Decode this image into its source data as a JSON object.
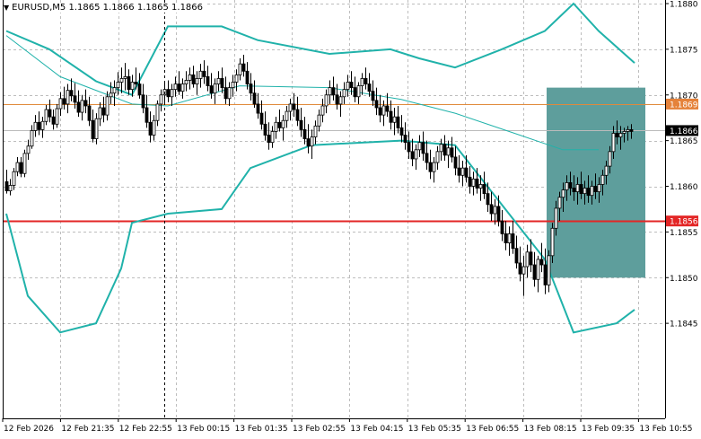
{
  "header": {
    "symbol": "EURUSD,M5",
    "prices": [
      "1.1865",
      "1.1866",
      "1.1865",
      "1.1866"
    ]
  },
  "chart_data": {
    "type": "candlestick",
    "ylim": [
      1.184,
      1.188
    ],
    "y_ticks": [
      "1.1880",
      "1.1875",
      "1.1870",
      "1.1865",
      "1.1860",
      "1.1855",
      "1.1850",
      "1.1845"
    ],
    "x_ticks": [
      "12 Feb 2026",
      "12 Feb 21:35",
      "12 Feb 22:55",
      "13 Feb 00:15",
      "13 Feb 01:35",
      "13 Feb 02:55",
      "13 Feb 04:15",
      "13 Feb 05:35",
      "13 Feb 06:55",
      "13 Feb 08:15",
      "13 Feb 09:35",
      "13 Feb 10:55"
    ],
    "grid": true,
    "candle_count": 175,
    "candles": [
      [
        1.18605,
        1.18618,
        1.18592,
        1.18595
      ],
      [
        1.18595,
        1.18608,
        1.1859,
        1.18601
      ],
      [
        1.18601,
        1.1862,
        1.18596,
        1.18616
      ],
      [
        1.18616,
        1.18632,
        1.18611,
        1.18626
      ],
      [
        1.18626,
        1.18632,
        1.1861,
        1.18614
      ],
      [
        1.18614,
        1.1864,
        1.1861,
        1.18636
      ],
      [
        1.18636,
        1.18651,
        1.18629,
        1.18644
      ],
      [
        1.18644,
        1.18667,
        1.18641,
        1.18661
      ],
      [
        1.18661,
        1.18678,
        1.18654,
        1.1867
      ],
      [
        1.1867,
        1.18682,
        1.18656,
        1.18662
      ],
      [
        1.18662,
        1.18676,
        1.18653,
        1.18671
      ],
      [
        1.18671,
        1.18689,
        1.18667,
        1.18684
      ],
      [
        1.18684,
        1.18695,
        1.1867,
        1.18676
      ],
      [
        1.18676,
        1.18684,
        1.18662,
        1.18668
      ],
      [
        1.18668,
        1.1869,
        1.18664,
        1.18685
      ],
      [
        1.18685,
        1.18703,
        1.18677,
        1.18696
      ],
      [
        1.18696,
        1.18709,
        1.18684,
        1.1869
      ],
      [
        1.1869,
        1.18712,
        1.1868,
        1.18705
      ],
      [
        1.18705,
        1.18718,
        1.18693,
        1.18699
      ],
      [
        1.18699,
        1.18713,
        1.18685,
        1.18692
      ],
      [
        1.18692,
        1.18705,
        1.18676,
        1.18681
      ],
      [
        1.18681,
        1.187,
        1.18672,
        1.18694
      ],
      [
        1.18694,
        1.18706,
        1.1868,
        1.18688
      ],
      [
        1.18688,
        1.18698,
        1.18666,
        1.18672
      ],
      [
        1.18672,
        1.18684,
        1.18648,
        1.18652
      ],
      [
        1.18652,
        1.1868,
        1.18646,
        1.18674
      ],
      [
        1.18674,
        1.18692,
        1.18666,
        1.18686
      ],
      [
        1.18686,
        1.18698,
        1.1867,
        1.18678
      ],
      [
        1.18678,
        1.18704,
        1.18672,
        1.18698
      ],
      [
        1.18698,
        1.18714,
        1.1869,
        1.18702
      ],
      [
        1.18702,
        1.18716,
        1.18688,
        1.18708
      ],
      [
        1.18708,
        1.18725,
        1.187,
        1.18714
      ],
      [
        1.18714,
        1.1873,
        1.18702,
        1.18718
      ],
      [
        1.18718,
        1.18735,
        1.18705,
        1.1872
      ],
      [
        1.1872,
        1.18728,
        1.187,
        1.18706
      ],
      [
        1.18706,
        1.18722,
        1.18698,
        1.18714
      ],
      [
        1.18714,
        1.1873,
        1.18706,
        1.18712
      ],
      [
        1.18712,
        1.18724,
        1.18696,
        1.187
      ],
      [
        1.187,
        1.18712,
        1.1868,
        1.18686
      ],
      [
        1.18686,
        1.187,
        1.18664,
        1.1867
      ],
      [
        1.1867,
        1.18682,
        1.18648,
        1.18656
      ],
      [
        1.18656,
        1.18678,
        1.1865,
        1.18672
      ],
      [
        1.18672,
        1.18694,
        1.18666,
        1.1869
      ],
      [
        1.1869,
        1.18706,
        1.18682,
        1.187
      ],
      [
        1.187,
        1.18714,
        1.1869,
        1.18706
      ],
      [
        1.18706,
        1.18716,
        1.18692,
        1.18698
      ],
      [
        1.18698,
        1.18712,
        1.18688,
        1.18706
      ],
      [
        1.18706,
        1.1872,
        1.18698,
        1.18712
      ],
      [
        1.18712,
        1.18726,
        1.187,
        1.18704
      ],
      [
        1.18704,
        1.18718,
        1.18696,
        1.18712
      ],
      [
        1.18712,
        1.18726,
        1.18704,
        1.18716
      ],
      [
        1.18716,
        1.1873,
        1.18706,
        1.18722
      ],
      [
        1.18722,
        1.18732,
        1.18708,
        1.18712
      ],
      [
        1.18712,
        1.18726,
        1.187,
        1.18718
      ],
      [
        1.18718,
        1.18734,
        1.18708,
        1.18726
      ],
      [
        1.18726,
        1.18738,
        1.18712,
        1.1872
      ],
      [
        1.1872,
        1.18732,
        1.18704,
        1.1871
      ],
      [
        1.1871,
        1.18724,
        1.18696,
        1.18702
      ],
      [
        1.18702,
        1.18718,
        1.1869,
        1.18712
      ],
      [
        1.18712,
        1.18726,
        1.18704,
        1.18718
      ],
      [
        1.18718,
        1.1873,
        1.18702,
        1.18708
      ],
      [
        1.18708,
        1.1872,
        1.1869,
        1.18696
      ],
      [
        1.18696,
        1.18714,
        1.18688,
        1.18708
      ],
      [
        1.18708,
        1.18722,
        1.18698,
        1.18714
      ],
      [
        1.18714,
        1.18728,
        1.18704,
        1.18722
      ],
      [
        1.18722,
        1.1874,
        1.18716,
        1.18734
      ],
      [
        1.18734,
        1.18744,
        1.1872,
        1.18726
      ],
      [
        1.18726,
        1.18736,
        1.18706,
        1.18712
      ],
      [
        1.18712,
        1.18724,
        1.18694,
        1.18702
      ],
      [
        1.18702,
        1.18716,
        1.18686,
        1.1869
      ],
      [
        1.1869,
        1.18702,
        1.18674,
        1.1868
      ],
      [
        1.1868,
        1.18694,
        1.18662,
        1.18668
      ],
      [
        1.18668,
        1.18682,
        1.1865,
        1.18656
      ],
      [
        1.18656,
        1.1867,
        1.1864,
        1.18648
      ],
      [
        1.18648,
        1.18666,
        1.18642,
        1.1866
      ],
      [
        1.1866,
        1.18676,
        1.18652,
        1.1867
      ],
      [
        1.1867,
        1.18684,
        1.1866,
        1.18664
      ],
      [
        1.18664,
        1.18678,
        1.1865,
        1.18672
      ],
      [
        1.18672,
        1.18688,
        1.18664,
        1.18682
      ],
      [
        1.18682,
        1.18696,
        1.18672,
        1.1869
      ],
      [
        1.1869,
        1.18702,
        1.18676,
        1.18684
      ],
      [
        1.18684,
        1.18698,
        1.18666,
        1.18672
      ],
      [
        1.18672,
        1.18686,
        1.18654,
        1.18662
      ],
      [
        1.18662,
        1.18676,
        1.18646,
        1.18652
      ],
      [
        1.18652,
        1.18668,
        1.18636,
        1.18644
      ],
      [
        1.18644,
        1.18662,
        1.1863,
        1.18654
      ],
      [
        1.18654,
        1.18672,
        1.18646,
        1.18666
      ],
      [
        1.18666,
        1.18684,
        1.1866,
        1.18678
      ],
      [
        1.18678,
        1.18696,
        1.1867,
        1.18688
      ],
      [
        1.18688,
        1.18706,
        1.1868,
        1.187
      ],
      [
        1.187,
        1.18716,
        1.1869,
        1.18708
      ],
      [
        1.18708,
        1.1872,
        1.18694,
        1.187
      ],
      [
        1.187,
        1.18712,
        1.18684,
        1.1869
      ],
      [
        1.1869,
        1.18704,
        1.18676,
        1.18698
      ],
      [
        1.18698,
        1.18714,
        1.1869,
        1.18706
      ],
      [
        1.18706,
        1.18722,
        1.18698,
        1.18714
      ],
      [
        1.18714,
        1.18726,
        1.187,
        1.18708
      ],
      [
        1.18708,
        1.1872,
        1.18692,
        1.18698
      ],
      [
        1.18698,
        1.18714,
        1.1869,
        1.1871
      ],
      [
        1.1871,
        1.18724,
        1.187,
        1.18718
      ],
      [
        1.18718,
        1.1873,
        1.18706,
        1.18712
      ],
      [
        1.18712,
        1.18724,
        1.18698,
        1.18704
      ],
      [
        1.18704,
        1.18716,
        1.18688,
        1.18694
      ],
      [
        1.18694,
        1.18708,
        1.18678,
        1.18686
      ],
      [
        1.18686,
        1.187,
        1.1867,
        1.18678
      ],
      [
        1.18678,
        1.18694,
        1.18666,
        1.18688
      ],
      [
        1.18688,
        1.18702,
        1.18676,
        1.18682
      ],
      [
        1.18682,
        1.18694,
        1.18662,
        1.1867
      ],
      [
        1.1867,
        1.18686,
        1.18656,
        1.18676
      ],
      [
        1.18676,
        1.18688,
        1.18658,
        1.18664
      ],
      [
        1.18664,
        1.18678,
        1.18648,
        1.18656
      ],
      [
        1.18656,
        1.1867,
        1.1864,
        1.18648
      ],
      [
        1.18648,
        1.1866,
        1.1863,
        1.18638
      ],
      [
        1.18638,
        1.18652,
        1.18622,
        1.1863
      ],
      [
        1.1863,
        1.18646,
        1.18618,
        1.1864
      ],
      [
        1.1864,
        1.18656,
        1.18632,
        1.18648
      ],
      [
        1.18648,
        1.1866,
        1.18628,
        1.18636
      ],
      [
        1.18636,
        1.1865,
        1.18618,
        1.18626
      ],
      [
        1.18626,
        1.1864,
        1.18608,
        1.18616
      ],
      [
        1.18616,
        1.18632,
        1.18604,
        1.18626
      ],
      [
        1.18626,
        1.18644,
        1.18618,
        1.18638
      ],
      [
        1.18638,
        1.18652,
        1.18628,
        1.18646
      ],
      [
        1.18646,
        1.18656,
        1.18628,
        1.18634
      ],
      [
        1.18634,
        1.1865,
        1.1862,
        1.18642
      ],
      [
        1.18642,
        1.18654,
        1.18626,
        1.18632
      ],
      [
        1.18632,
        1.18644,
        1.18612,
        1.1862
      ],
      [
        1.1862,
        1.18634,
        1.18604,
        1.18612
      ],
      [
        1.18612,
        1.18628,
        1.186,
        1.1862
      ],
      [
        1.1862,
        1.18634,
        1.18604,
        1.1861
      ],
      [
        1.1861,
        1.18622,
        1.18592,
        1.186
      ],
      [
        1.186,
        1.18616,
        1.1859,
        1.18608
      ],
      [
        1.18608,
        1.1862,
        1.18592,
        1.18598
      ],
      [
        1.18598,
        1.18612,
        1.18584,
        1.18602
      ],
      [
        1.18602,
        1.18616,
        1.18586,
        1.18592
      ],
      [
        1.18592,
        1.18604,
        1.18572,
        1.1858
      ],
      [
        1.1858,
        1.18594,
        1.18562,
        1.1857
      ],
      [
        1.1857,
        1.18586,
        1.18558,
        1.18578
      ],
      [
        1.18578,
        1.1859,
        1.18556,
        1.18562
      ],
      [
        1.18562,
        1.18574,
        1.1854,
        1.18548
      ],
      [
        1.18548,
        1.18562,
        1.1853,
        1.18538
      ],
      [
        1.18538,
        1.18556,
        1.18524,
        1.18548
      ],
      [
        1.18548,
        1.18562,
        1.18526,
        1.18532
      ],
      [
        1.18532,
        1.18546,
        1.1851,
        1.18516
      ],
      [
        1.18516,
        1.18534,
        1.18496,
        1.18504
      ],
      [
        1.18504,
        1.18524,
        1.1848,
        1.18512
      ],
      [
        1.18512,
        1.18536,
        1.185,
        1.18528
      ],
      [
        1.18528,
        1.18542,
        1.18506,
        1.18514
      ],
      [
        1.18514,
        1.18528,
        1.1849,
        1.18498
      ],
      [
        1.18498,
        1.18524,
        1.18484,
        1.1852
      ],
      [
        1.1852,
        1.18538,
        1.18506,
        1.18514
      ],
      [
        1.18514,
        1.18532,
        1.18482,
        1.18492
      ],
      [
        1.18492,
        1.1853,
        1.18484,
        1.18524
      ],
      [
        1.18524,
        1.1856,
        1.18516,
        1.18554
      ],
      [
        1.18554,
        1.18584,
        1.18546,
        1.18576
      ],
      [
        1.18576,
        1.18594,
        1.18562,
        1.18588
      ],
      [
        1.18588,
        1.18604,
        1.18572,
        1.18596
      ],
      [
        1.18596,
        1.18612,
        1.18584,
        1.18604
      ],
      [
        1.18604,
        1.18616,
        1.1859,
        1.18598
      ],
      [
        1.18598,
        1.18612,
        1.18584,
        1.18594
      ],
      [
        1.18594,
        1.1861,
        1.1858,
        1.18602
      ],
      [
        1.18602,
        1.18616,
        1.18586,
        1.18592
      ],
      [
        1.18592,
        1.18606,
        1.1858,
        1.18598
      ],
      [
        1.18598,
        1.18612,
        1.18582,
        1.1859
      ],
      [
        1.1859,
        1.18606,
        1.1858,
        1.186
      ],
      [
        1.186,
        1.18614,
        1.18586,
        1.18594
      ],
      [
        1.18594,
        1.1861,
        1.18582,
        1.18602
      ],
      [
        1.18602,
        1.18618,
        1.1859,
        1.18612
      ],
      [
        1.18612,
        1.18628,
        1.18602,
        1.18622
      ],
      [
        1.18622,
        1.18644,
        1.18614,
        1.18638
      ],
      [
        1.18638,
        1.18666,
        1.1863,
        1.18658
      ],
      [
        1.18658,
        1.18672,
        1.18646,
        1.18654
      ],
      [
        1.18654,
        1.18666,
        1.1864,
        1.18658
      ],
      [
        1.18658,
        1.18664,
        1.18648,
        1.1866
      ],
      [
        1.1866,
        1.18666,
        1.1865,
        1.18662
      ],
      [
        1.18662,
        1.18668,
        1.18652,
        1.1866
      ]
    ],
    "bands": {
      "upper": [
        [
          0,
          1.1877
        ],
        [
          12,
          1.1875
        ],
        [
          25,
          1.18715
        ],
        [
          35,
          1.187
        ],
        [
          45,
          1.18775
        ],
        [
          60,
          1.18775
        ],
        [
          70,
          1.1876
        ],
        [
          90,
          1.18745
        ],
        [
          107,
          1.1875
        ],
        [
          115,
          1.1874
        ],
        [
          125,
          1.1873
        ],
        [
          138,
          1.1875
        ],
        [
          150,
          1.1877
        ],
        [
          158,
          1.188
        ],
        [
          165,
          1.1877
        ],
        [
          175,
          1.18735
        ]
      ],
      "middle": [
        [
          0,
          1.18765
        ],
        [
          15,
          1.1872
        ],
        [
          35,
          1.1869
        ],
        [
          45,
          1.18688
        ],
        [
          65,
          1.1871
        ],
        [
          90,
          1.18708
        ],
        [
          110,
          1.18695
        ],
        [
          125,
          1.1868
        ],
        [
          140,
          1.1866
        ],
        [
          155,
          1.1864
        ],
        [
          165,
          1.1864
        ]
      ],
      "lower": [
        [
          0,
          1.1857
        ],
        [
          6,
          1.1848
        ],
        [
          15,
          1.1844
        ],
        [
          25,
          1.1845
        ],
        [
          32,
          1.1851
        ],
        [
          35,
          1.1856
        ],
        [
          45,
          1.1857
        ],
        [
          60,
          1.18575
        ],
        [
          68,
          1.1862
        ],
        [
          85,
          1.18645
        ],
        [
          110,
          1.1865
        ],
        [
          125,
          1.18645
        ],
        [
          135,
          1.18595
        ],
        [
          150,
          1.1852
        ],
        [
          158,
          1.1844
        ],
        [
          170,
          1.1845
        ],
        [
          175,
          1.18465
        ]
      ]
    },
    "horizontal_lines": [
      {
        "label": "1.1869",
        "value": 1.1869,
        "color": "#E08A3C"
      },
      {
        "label": "1.1856",
        "value": 1.18562,
        "color": "#E32626"
      },
      {
        "label": "1.1866",
        "value": 1.18661,
        "color": "#BBBBBB"
      }
    ],
    "price_tags": [
      {
        "label": "1.1869",
        "value": 1.1869,
        "bg": "#E5823A",
        "fg": "#ffffff"
      },
      {
        "label": "1.1866",
        "value": 1.18661,
        "bg": "#000000",
        "fg": "#ffffff"
      },
      {
        "label": "1.1856",
        "value": 1.18562,
        "bg": "#E32626",
        "fg": "#ffffff"
      }
    ],
    "highlight_zone": {
      "x_start": 150.5,
      "x_end": 178,
      "y_top": 1.18708,
      "y_bottom": 1.185,
      "color": "#5E9E9C"
    },
    "vertical_marker": {
      "x": 44,
      "style": "dashed"
    },
    "colors": {
      "candle": "#000000",
      "bands": "#20B2AA",
      "grid": "#BDBDBD"
    }
  }
}
